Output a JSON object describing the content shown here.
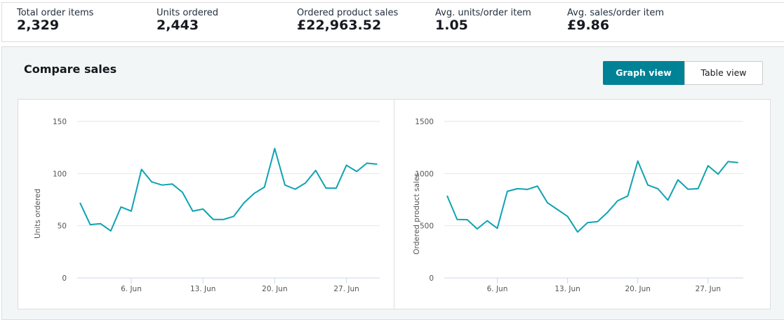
{
  "metrics": [
    {
      "label": "Total order items",
      "value": "2,329"
    },
    {
      "label": "Units ordered",
      "value": "2,443"
    },
    {
      "label": "Ordered product sales",
      "value": "£22,963.52"
    },
    {
      "label": "Avg. units/order item",
      "value": "1.05"
    },
    {
      "label": "Avg. sales/order item",
      "value": "£9.86"
    }
  ],
  "section": {
    "title": "Compare sales",
    "graph_view": "Graph view",
    "table_view": "Table view",
    "active_view": "Graph view"
  },
  "colors": {
    "line": "#0fa3b1",
    "accent": "#008296"
  },
  "chart_data": [
    {
      "type": "line",
      "ylabel": "Units ordered",
      "ylim": [
        0,
        150
      ],
      "yticks": [
        "0",
        "50",
        "100",
        "150"
      ],
      "x": [
        "1 Jun",
        "2 Jun",
        "3 Jun",
        "4 Jun",
        "5 Jun",
        "6 Jun",
        "7 Jun",
        "8 Jun",
        "9 Jun",
        "10 Jun",
        "11 Jun",
        "12 Jun",
        "13 Jun",
        "14 Jun",
        "15 Jun",
        "16 Jun",
        "17 Jun",
        "18 Jun",
        "19 Jun",
        "20 Jun",
        "21 Jun",
        "22 Jun",
        "23 Jun",
        "24 Jun",
        "25 Jun",
        "26 Jun",
        "27 Jun",
        "28 Jun",
        "29 Jun",
        "30 Jun"
      ],
      "xticks": [
        "6. Jun",
        "13. Jun",
        "20. Jun",
        "27. Jun"
      ],
      "values": [
        72,
        51,
        52,
        45,
        68,
        64,
        104,
        92,
        89,
        90,
        82,
        64,
        66,
        56,
        56,
        59,
        72,
        81,
        87,
        124,
        89,
        85,
        91,
        103,
        86,
        86,
        108,
        102,
        110,
        109
      ],
      "grid": true
    },
    {
      "type": "line",
      "ylabel": "Ordered product sales",
      "ylim": [
        0,
        1500
      ],
      "yticks": [
        "0",
        "500",
        "1000",
        "1500"
      ],
      "x": [
        "1 Jun",
        "2 Jun",
        "3 Jun",
        "4 Jun",
        "5 Jun",
        "6 Jun",
        "7 Jun",
        "8 Jun",
        "9 Jun",
        "10 Jun",
        "11 Jun",
        "12 Jun",
        "13 Jun",
        "14 Jun",
        "15 Jun",
        "16 Jun",
        "17 Jun",
        "18 Jun",
        "19 Jun",
        "20 Jun",
        "21 Jun",
        "22 Jun",
        "23 Jun",
        "24 Jun",
        "25 Jun",
        "26 Jun",
        "27 Jun",
        "28 Jun",
        "29 Jun",
        "30 Jun"
      ],
      "xticks": [
        "6. Jun",
        "13. Jun",
        "20. Jun",
        "27. Jun"
      ],
      "values": [
        788,
        560,
        558,
        470,
        548,
        475,
        830,
        855,
        848,
        880,
        720,
        655,
        590,
        440,
        530,
        540,
        630,
        740,
        785,
        1120,
        890,
        855,
        745,
        940,
        850,
        855,
        1075,
        995,
        1115,
        1105
      ],
      "grid": true
    }
  ]
}
